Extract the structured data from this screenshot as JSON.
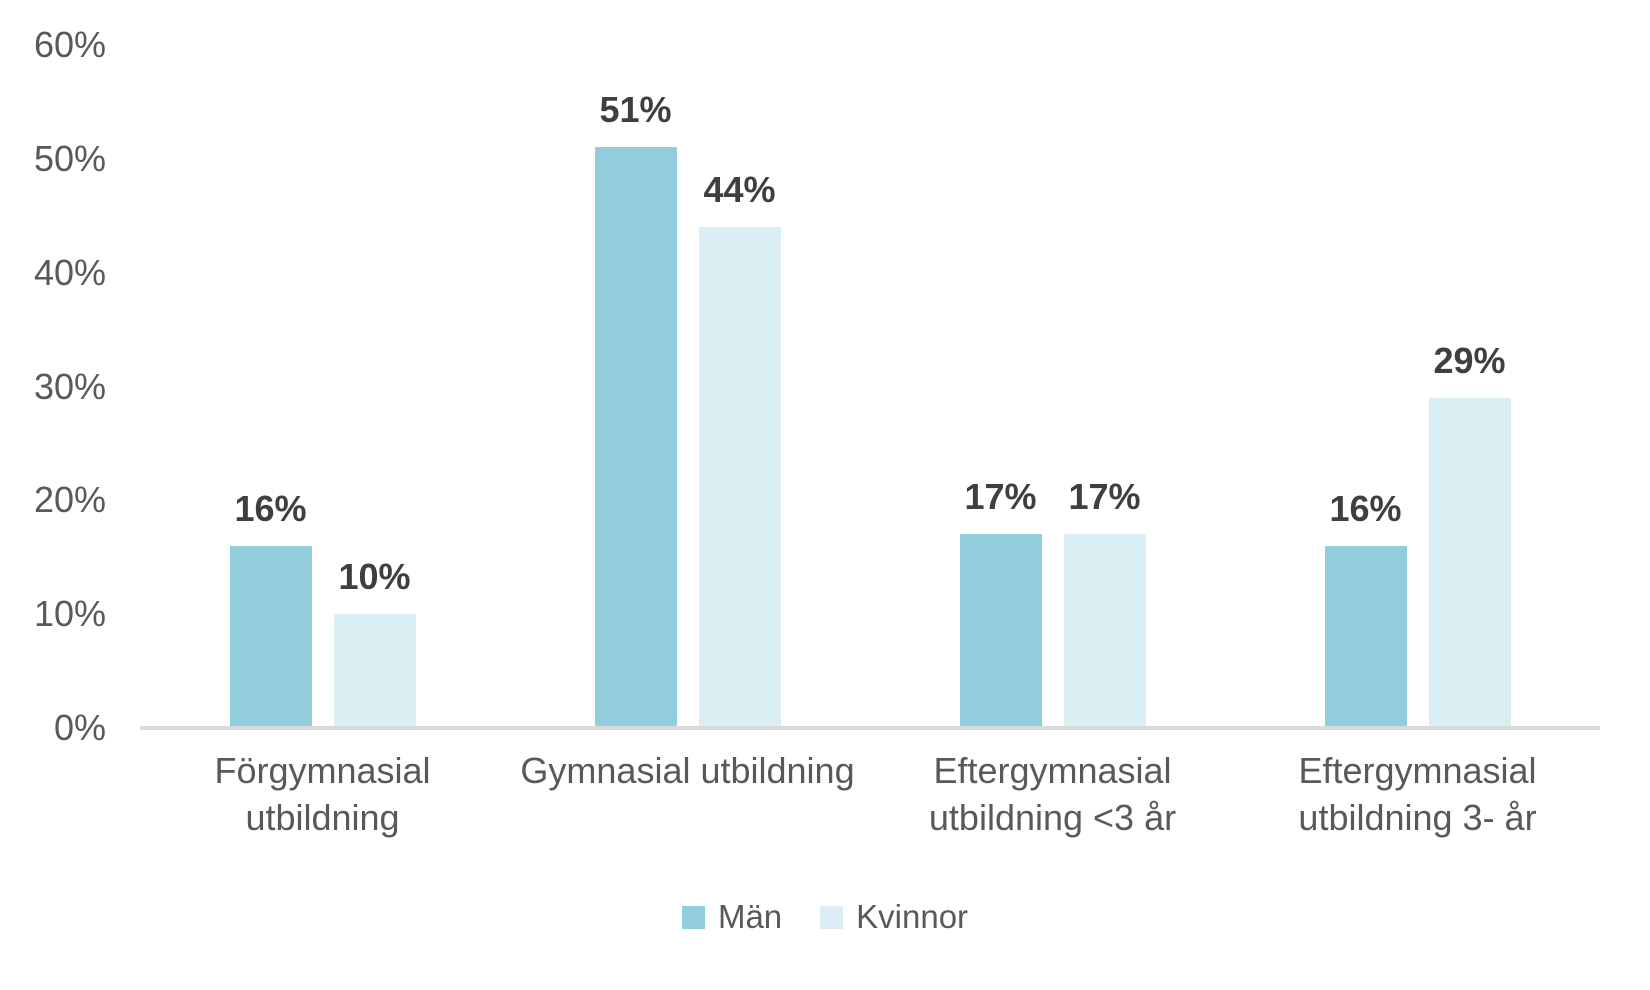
{
  "chart_data": {
    "type": "bar",
    "title": "",
    "xlabel": "",
    "ylabel": "",
    "categories": [
      "Förgymnasial utbildning",
      "Gymnasial utbildning",
      "Eftergymnasial utbildning <3 år",
      "Eftergymnasial utbildning 3- år"
    ],
    "series": [
      {
        "name": "Män",
        "color": "#92CDDC",
        "values": [
          16,
          51,
          17,
          16
        ],
        "data_labels": [
          "16%",
          "51%",
          "17%",
          "16%"
        ]
      },
      {
        "name": "Kvinnor",
        "color": "#DAEEF3",
        "values": [
          10,
          44,
          17,
          29
        ],
        "data_labels": [
          "10%",
          "44%",
          "17%",
          "29%"
        ]
      }
    ],
    "ylim": [
      0,
      60
    ],
    "yticks": [
      {
        "value": 0,
        "label": "0%"
      },
      {
        "value": 10,
        "label": "10%"
      },
      {
        "value": 20,
        "label": "20%"
      },
      {
        "value": 30,
        "label": "30%"
      },
      {
        "value": 40,
        "label": "40%"
      },
      {
        "value": 50,
        "label": "50%"
      },
      {
        "value": 60,
        "label": "60%"
      }
    ],
    "grid": false,
    "legend_position": "bottom",
    "colors": {
      "axis_line": "#D9D9D9",
      "tick_text": "#595959",
      "category_text": "#595959",
      "data_label_text": "#3F3F3F",
      "background": "#FFFFFF"
    }
  }
}
